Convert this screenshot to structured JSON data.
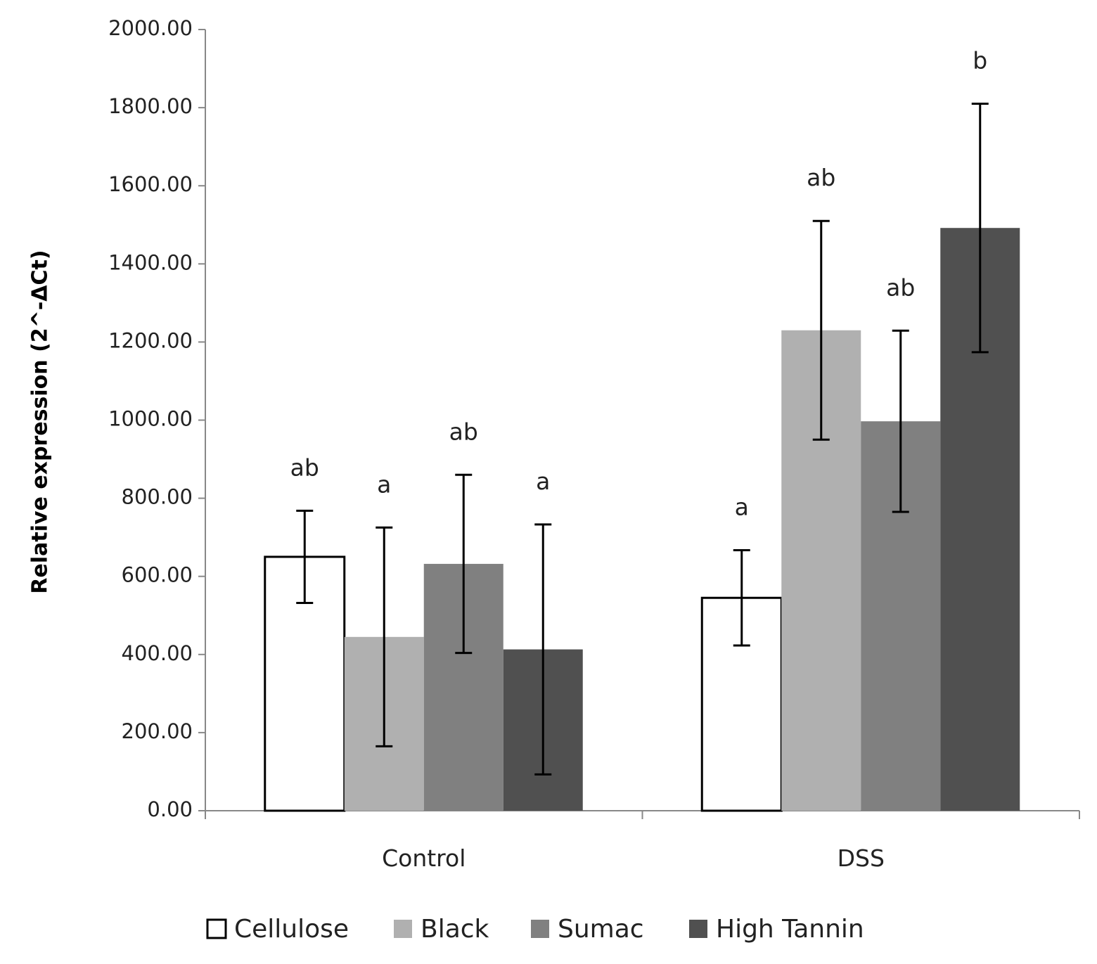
{
  "chart_data": {
    "type": "bar",
    "title": "",
    "xlabel": "",
    "ylabel": "Relative expression (2^-ΔCt)",
    "ylim": [
      0,
      2000
    ],
    "yticks": [
      "0.00",
      "200.00",
      "400.00",
      "600.00",
      "800.00",
      "1000.00",
      "1200.00",
      "1400.00",
      "1600.00",
      "1800.00",
      "2000.00"
    ],
    "categories": [
      "Control",
      "DSS"
    ],
    "series": [
      {
        "name": "Cellulose",
        "color": "#ffffff",
        "values": [
          650,
          545
        ],
        "errors": [
          118,
          122
        ],
        "letters": [
          "ab",
          "a"
        ]
      },
      {
        "name": "Black",
        "color": "#b0b0b0",
        "values": [
          445,
          1230
        ],
        "errors": [
          280,
          280
        ],
        "letters": [
          "a",
          "ab"
        ]
      },
      {
        "name": "Sumac",
        "color": "#808080",
        "values": [
          632,
          997
        ],
        "errors": [
          228,
          232
        ],
        "letters": [
          "ab",
          "ab"
        ]
      },
      {
        "name": "High Tannin",
        "color": "#505050",
        "values": [
          413,
          1492
        ],
        "errors": [
          320,
          318
        ],
        "letters": [
          "a",
          "b"
        ]
      }
    ],
    "grid": false,
    "legend_position": "bottom"
  }
}
